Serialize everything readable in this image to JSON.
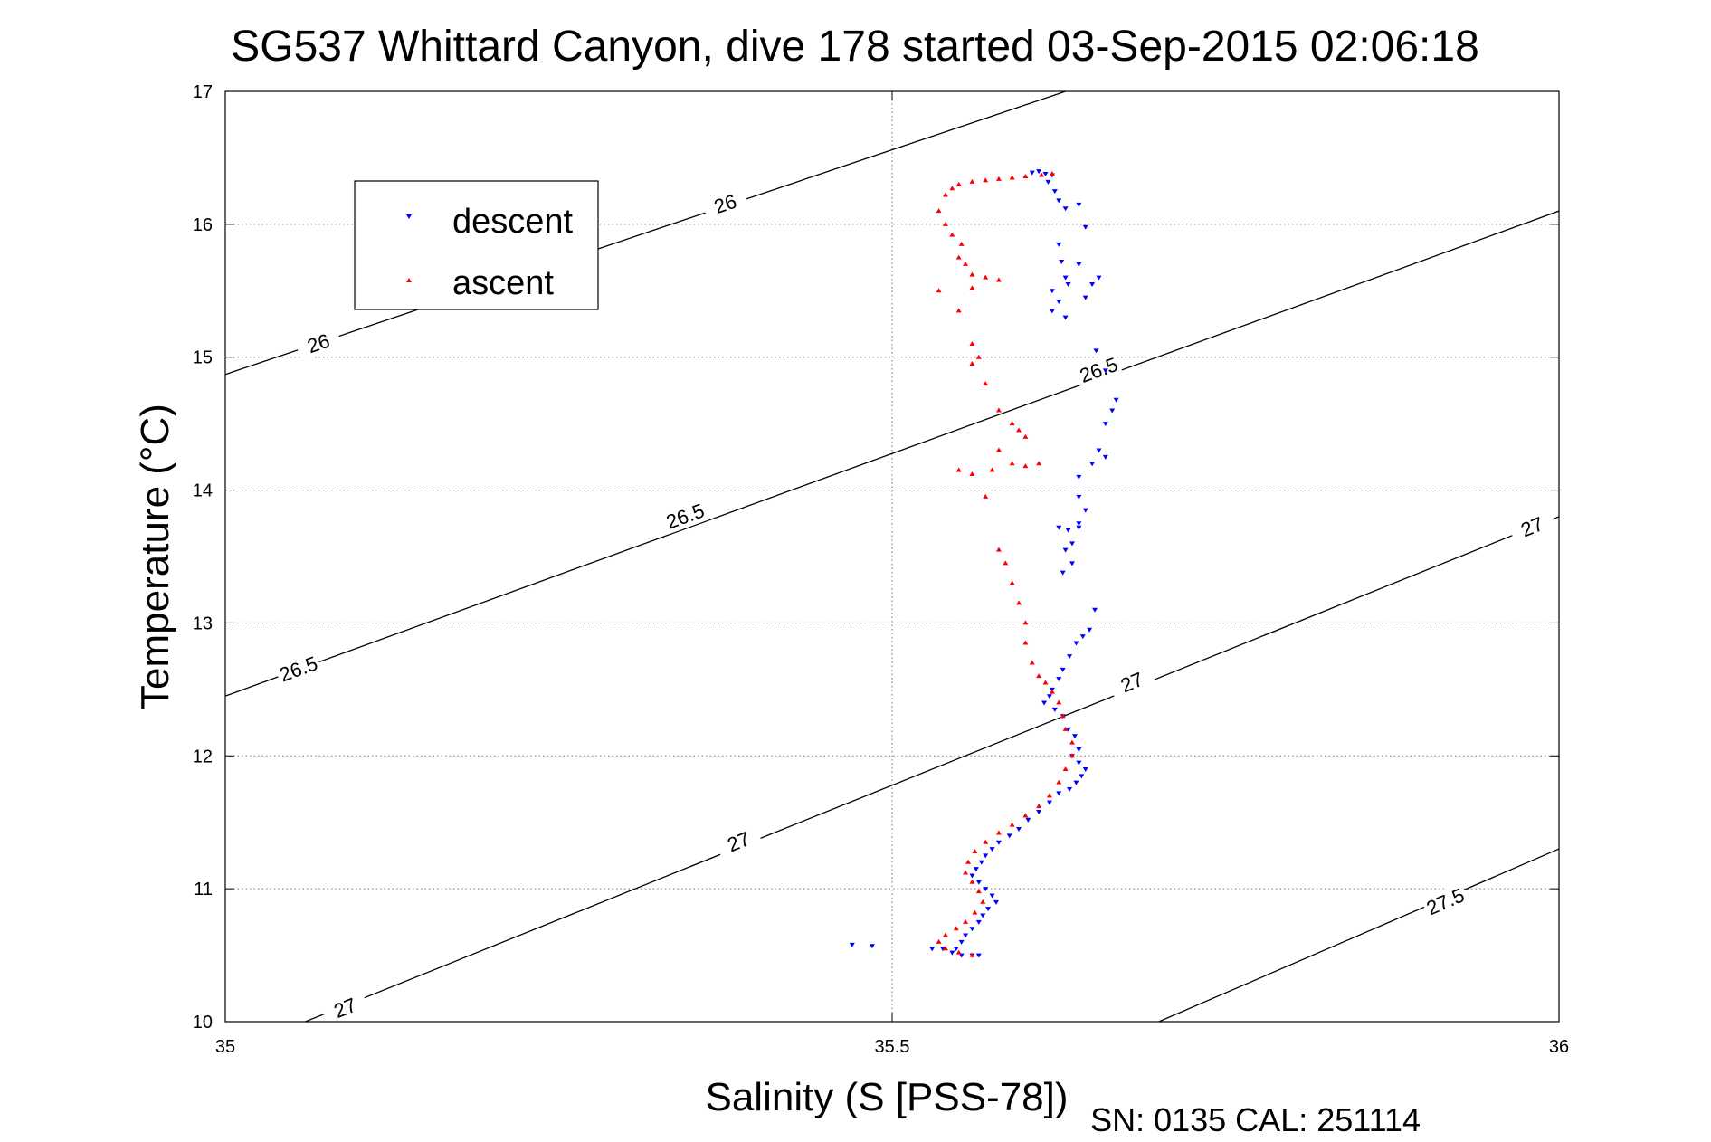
{
  "chart_data": {
    "type": "scatter",
    "title": "SG537 Whittard Canyon, dive 178 started 03-Sep-2015 02:06:18",
    "xlabel": "Salinity (S [PSS-78])",
    "ylabel": "Temperature (°C)",
    "footer": "SN: 0135  CAL: 251114",
    "xlim": [
      35,
      36
    ],
    "ylim": [
      10,
      17
    ],
    "xticks": [
      35,
      35.5,
      36
    ],
    "xtick_labels": [
      "35",
      "35.5",
      "36"
    ],
    "yticks": [
      10,
      11,
      12,
      13,
      14,
      15,
      16,
      17
    ],
    "ytick_labels": [
      "10",
      "11",
      "12",
      "13",
      "14",
      "15",
      "16",
      "17"
    ],
    "grid": true,
    "legend": {
      "placement": "top-left",
      "entries": [
        "descent",
        "ascent"
      ]
    },
    "colors": {
      "descent": "#0000ff",
      "ascent": "#ff0000",
      "contour": "#000000"
    },
    "contours": [
      {
        "level": "26",
        "points": [
          [
            35.0,
            14.87
          ],
          [
            35.63,
            17.0
          ]
        ],
        "labels": [
          [
            35.07,
            15.1
          ],
          [
            35.375,
            16.15
          ]
        ]
      },
      {
        "level": "26.5",
        "points": [
          [
            35.0,
            12.45
          ],
          [
            36.0,
            16.1
          ]
        ],
        "labels": [
          [
            35.055,
            12.65
          ],
          [
            35.345,
            13.8
          ],
          [
            35.655,
            14.9
          ]
        ]
      },
      {
        "level": "27",
        "points": [
          [
            35.06,
            10.0
          ],
          [
            36.0,
            13.8
          ]
        ],
        "labels": [
          [
            35.09,
            10.1
          ],
          [
            35.385,
            11.35
          ],
          [
            35.68,
            12.55
          ],
          [
            35.98,
            13.72
          ]
        ]
      },
      {
        "level": "27.5",
        "points": [
          [
            35.7,
            10.0
          ],
          [
            36.0,
            11.3
          ]
        ],
        "labels": [
          [
            35.915,
            10.9
          ]
        ]
      }
    ],
    "series": [
      {
        "name": "descent",
        "marker": "down-triangle",
        "points": [
          [
            35.605,
            16.39
          ],
          [
            35.61,
            16.4
          ],
          [
            35.615,
            16.38
          ],
          [
            35.62,
            16.37
          ],
          [
            35.617,
            16.32
          ],
          [
            35.622,
            16.25
          ],
          [
            35.625,
            16.18
          ],
          [
            35.63,
            16.12
          ],
          [
            35.64,
            16.15
          ],
          [
            35.645,
            15.98
          ],
          [
            35.625,
            15.85
          ],
          [
            35.627,
            15.72
          ],
          [
            35.64,
            15.7
          ],
          [
            35.63,
            15.6
          ],
          [
            35.632,
            15.55
          ],
          [
            35.62,
            15.5
          ],
          [
            35.625,
            15.42
          ],
          [
            35.62,
            15.35
          ],
          [
            35.63,
            15.3
          ],
          [
            35.645,
            15.45
          ],
          [
            35.655,
            15.6
          ],
          [
            35.65,
            15.55
          ],
          [
            35.653,
            15.05
          ],
          [
            35.66,
            14.9
          ],
          [
            35.665,
            14.6
          ],
          [
            35.668,
            14.68
          ],
          [
            35.66,
            14.5
          ],
          [
            35.655,
            14.3
          ],
          [
            35.66,
            14.25
          ],
          [
            35.65,
            14.2
          ],
          [
            35.64,
            14.1
          ],
          [
            35.625,
            13.72
          ],
          [
            35.632,
            13.7
          ],
          [
            35.64,
            13.72
          ],
          [
            35.635,
            13.6
          ],
          [
            35.63,
            13.55
          ],
          [
            35.635,
            13.45
          ],
          [
            35.628,
            13.38
          ],
          [
            35.64,
            13.75
          ],
          [
            35.645,
            13.85
          ],
          [
            35.64,
            13.95
          ],
          [
            35.652,
            13.1
          ],
          [
            35.648,
            12.95
          ],
          [
            35.643,
            12.9
          ],
          [
            35.638,
            12.85
          ],
          [
            35.633,
            12.75
          ],
          [
            35.628,
            12.65
          ],
          [
            35.625,
            12.58
          ],
          [
            35.62,
            12.5
          ],
          [
            35.618,
            12.45
          ],
          [
            35.614,
            12.4
          ],
          [
            35.622,
            12.35
          ],
          [
            35.628,
            12.3
          ],
          [
            35.632,
            12.2
          ],
          [
            35.637,
            12.15
          ],
          [
            35.64,
            12.05
          ],
          [
            35.635,
            12.0
          ],
          [
            35.64,
            11.95
          ],
          [
            35.645,
            11.9
          ],
          [
            35.642,
            11.85
          ],
          [
            35.638,
            11.8
          ],
          [
            35.633,
            11.75
          ],
          [
            35.625,
            11.72
          ],
          [
            35.618,
            11.65
          ],
          [
            35.61,
            11.58
          ],
          [
            35.602,
            11.52
          ],
          [
            35.595,
            11.45
          ],
          [
            35.588,
            11.4
          ],
          [
            35.58,
            11.35
          ],
          [
            35.575,
            11.3
          ],
          [
            35.57,
            11.25
          ],
          [
            35.567,
            11.2
          ],
          [
            35.563,
            11.15
          ],
          [
            35.56,
            11.1
          ],
          [
            35.565,
            11.05
          ],
          [
            35.57,
            11.0
          ],
          [
            35.575,
            10.95
          ],
          [
            35.578,
            10.9
          ],
          [
            35.572,
            10.85
          ],
          [
            35.568,
            10.8
          ],
          [
            35.565,
            10.75
          ],
          [
            35.56,
            10.7
          ],
          [
            35.555,
            10.65
          ],
          [
            35.552,
            10.6
          ],
          [
            35.548,
            10.55
          ],
          [
            35.545,
            10.52
          ],
          [
            35.552,
            10.5
          ],
          [
            35.56,
            10.5
          ],
          [
            35.565,
            10.5
          ],
          [
            35.538,
            10.55
          ],
          [
            35.53,
            10.55
          ],
          [
            35.485,
            10.57
          ],
          [
            35.47,
            10.58
          ]
        ]
      },
      {
        "name": "ascent",
        "marker": "up-triangle",
        "points": [
          [
            35.62,
            16.38
          ],
          [
            35.612,
            16.37
          ],
          [
            35.6,
            16.36
          ],
          [
            35.59,
            16.35
          ],
          [
            35.58,
            16.34
          ],
          [
            35.57,
            16.33
          ],
          [
            35.56,
            16.32
          ],
          [
            35.55,
            16.3
          ],
          [
            35.545,
            16.27
          ],
          [
            35.54,
            16.22
          ],
          [
            35.535,
            16.1
          ],
          [
            35.54,
            16.0
          ],
          [
            35.545,
            15.92
          ],
          [
            35.552,
            15.85
          ],
          [
            35.55,
            15.75
          ],
          [
            35.555,
            15.7
          ],
          [
            35.56,
            15.62
          ],
          [
            35.57,
            15.6
          ],
          [
            35.58,
            15.58
          ],
          [
            35.56,
            15.52
          ],
          [
            35.535,
            15.5
          ],
          [
            35.55,
            15.35
          ],
          [
            35.56,
            15.1
          ],
          [
            35.565,
            15.0
          ],
          [
            35.56,
            14.95
          ],
          [
            35.57,
            14.8
          ],
          [
            35.58,
            14.6
          ],
          [
            35.59,
            14.5
          ],
          [
            35.595,
            14.45
          ],
          [
            35.6,
            14.4
          ],
          [
            35.58,
            14.3
          ],
          [
            35.59,
            14.2
          ],
          [
            35.6,
            14.18
          ],
          [
            35.61,
            14.2
          ],
          [
            35.575,
            14.15
          ],
          [
            35.56,
            14.12
          ],
          [
            35.55,
            14.15
          ],
          [
            35.57,
            13.95
          ],
          [
            35.58,
            13.55
          ],
          [
            35.585,
            13.45
          ],
          [
            35.59,
            13.3
          ],
          [
            35.595,
            13.15
          ],
          [
            35.6,
            13.0
          ],
          [
            35.6,
            12.85
          ],
          [
            35.605,
            12.7
          ],
          [
            35.61,
            12.6
          ],
          [
            35.615,
            12.55
          ],
          [
            35.62,
            12.48
          ],
          [
            35.625,
            12.4
          ],
          [
            35.628,
            12.3
          ],
          [
            35.63,
            12.2
          ],
          [
            35.635,
            12.1
          ],
          [
            35.635,
            12.0
          ],
          [
            35.63,
            11.9
          ],
          [
            35.625,
            11.8
          ],
          [
            35.618,
            11.7
          ],
          [
            35.61,
            11.62
          ],
          [
            35.6,
            11.55
          ],
          [
            35.59,
            11.48
          ],
          [
            35.58,
            11.42
          ],
          [
            35.57,
            11.35
          ],
          [
            35.562,
            11.28
          ],
          [
            35.557,
            11.2
          ],
          [
            35.555,
            11.12
          ],
          [
            35.56,
            11.05
          ],
          [
            35.565,
            10.98
          ],
          [
            35.568,
            10.9
          ],
          [
            35.562,
            10.82
          ],
          [
            35.555,
            10.75
          ],
          [
            35.548,
            10.7
          ],
          [
            35.54,
            10.65
          ],
          [
            35.535,
            10.6
          ],
          [
            35.54,
            10.55
          ],
          [
            35.55,
            10.52
          ],
          [
            35.56,
            10.5
          ]
        ]
      }
    ]
  }
}
